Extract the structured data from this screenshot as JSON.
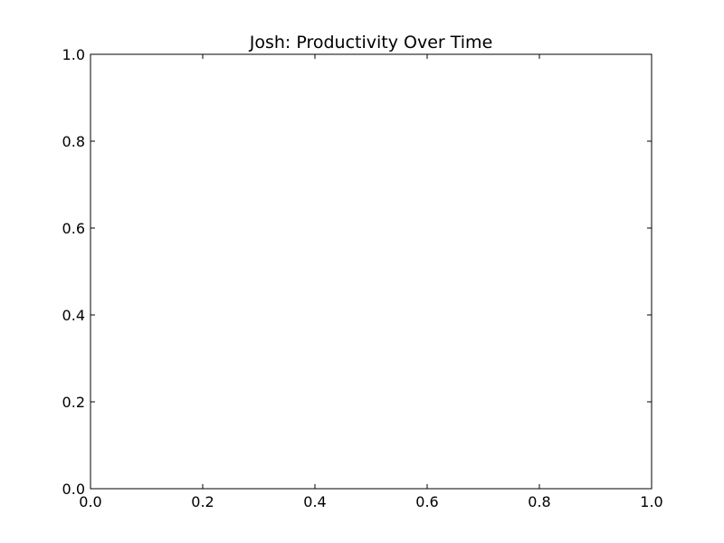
{
  "chart_data": {
    "type": "line",
    "title": "Josh: Productivity Over Time",
    "xlabel": "",
    "ylabel": "",
    "xlim": [
      0.0,
      1.0
    ],
    "ylim": [
      0.0,
      1.0
    ],
    "x_ticks": [
      "0.0",
      "0.2",
      "0.4",
      "0.6",
      "0.8",
      "1.0"
    ],
    "y_ticks": [
      "0.0",
      "0.2",
      "0.4",
      "0.6",
      "0.8",
      "1.0"
    ],
    "grid": false,
    "series": []
  }
}
